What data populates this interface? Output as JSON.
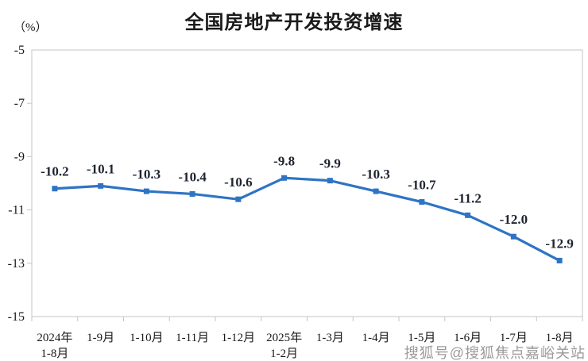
{
  "page": {
    "watermark": "搜狐号@搜狐焦点嘉峪关站"
  },
  "chart_data": {
    "type": "line",
    "title": "全国房地产开发投资增速",
    "unit_label": "（%）",
    "xlabel": "",
    "ylabel": "(%)",
    "categories": [
      "2024年\n1-8月",
      "1-9月",
      "1-10月",
      "1-11月",
      "1-12月",
      "2025年\n1-2月",
      "1-3月",
      "1-4月",
      "1-5月",
      "1-6月",
      "1-7月",
      "1-8月"
    ],
    "values": [
      -10.2,
      -10.1,
      -10.3,
      -10.4,
      -10.6,
      -9.8,
      -9.9,
      -10.3,
      -10.7,
      -11.2,
      -12.0,
      -12.9
    ],
    "data_labels": [
      "-10.2",
      "-10.1",
      "-10.3",
      "-10.4",
      "-10.6",
      "-9.8",
      "-9.9",
      "-10.3",
      "-10.7",
      "-11.2",
      "-12.0",
      "-12.9"
    ],
    "ylim": [
      -15,
      -5
    ],
    "yticks": [
      -5,
      -7,
      -9,
      -11,
      -13,
      -15
    ],
    "grid": false,
    "legend": "none",
    "marker": "square",
    "colors": {
      "line": "#2e74c4",
      "marker": "#2e74c4",
      "data_label": "#1f2430",
      "axis": "#c6c6c6",
      "tick_text": "#1a1a1a",
      "watermark": "#9b9b9b"
    }
  }
}
